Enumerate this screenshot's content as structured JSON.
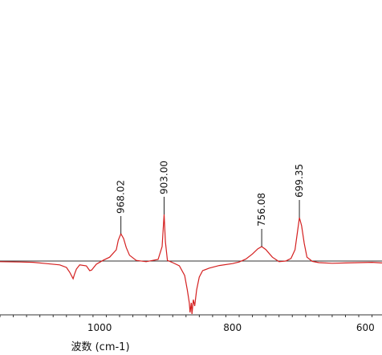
{
  "chart_data": {
    "type": "line",
    "title": "",
    "xlabel": "波数 (cm-1)",
    "ylabel": "",
    "xlim": [
      1150,
      575
    ],
    "x_reversed": true,
    "x_ticks": [
      1000,
      800,
      600
    ],
    "x_tick_labels": [
      "1000",
      "800",
      "600"
    ],
    "grid": false,
    "legend": "none",
    "baseline_level": 0,
    "series": [
      {
        "color": "#d42020",
        "x": [
          1150,
          1120,
          1100,
          1080,
          1060,
          1050,
          1045,
          1040,
          1038,
          1035,
          1030,
          1020,
          1015,
          1012,
          1005,
          995,
          985,
          975,
          972,
          968.02,
          964,
          960,
          955,
          945,
          930,
          912,
          906,
          904,
          903.0,
          901,
          898,
          890,
          880,
          872,
          868,
          865,
          864,
          862,
          861,
          859,
          857,
          854,
          850,
          845,
          835,
          820,
          800,
          790,
          780,
          770,
          762,
          756.08,
          750,
          740,
          730,
          720,
          712,
          706,
          702,
          699.35,
          696,
          692,
          688,
          680,
          670,
          650,
          630,
          610,
          590,
          575
        ],
        "y": [
          -0.02,
          -0.03,
          -0.04,
          -0.08,
          -0.12,
          -0.2,
          -0.35,
          -0.55,
          -0.42,
          -0.25,
          -0.12,
          -0.15,
          -0.3,
          -0.28,
          -0.1,
          0.02,
          0.12,
          0.35,
          0.65,
          0.85,
          0.7,
          0.42,
          0.18,
          0.02,
          -0.02,
          0.05,
          0.45,
          1.1,
          1.45,
          0.6,
          0.02,
          -0.05,
          -0.15,
          -0.45,
          -0.9,
          -1.3,
          -1.6,
          -1.3,
          -1.65,
          -1.2,
          -1.4,
          -0.9,
          -0.5,
          -0.3,
          -0.22,
          -0.14,
          -0.08,
          -0.03,
          0.06,
          0.22,
          0.38,
          0.45,
          0.36,
          0.12,
          -0.02,
          0.0,
          0.08,
          0.35,
          0.95,
          1.35,
          1.1,
          0.55,
          0.12,
          -0.01,
          -0.05,
          -0.07,
          -0.06,
          -0.05,
          -0.04,
          -0.06
        ]
      }
    ],
    "peaks": [
      {
        "x": 968.02,
        "label": "968.02"
      },
      {
        "x": 903.0,
        "label": "903.00"
      },
      {
        "x": 756.08,
        "label": "756.08"
      },
      {
        "x": 699.35,
        "label": "699.35"
      }
    ]
  }
}
